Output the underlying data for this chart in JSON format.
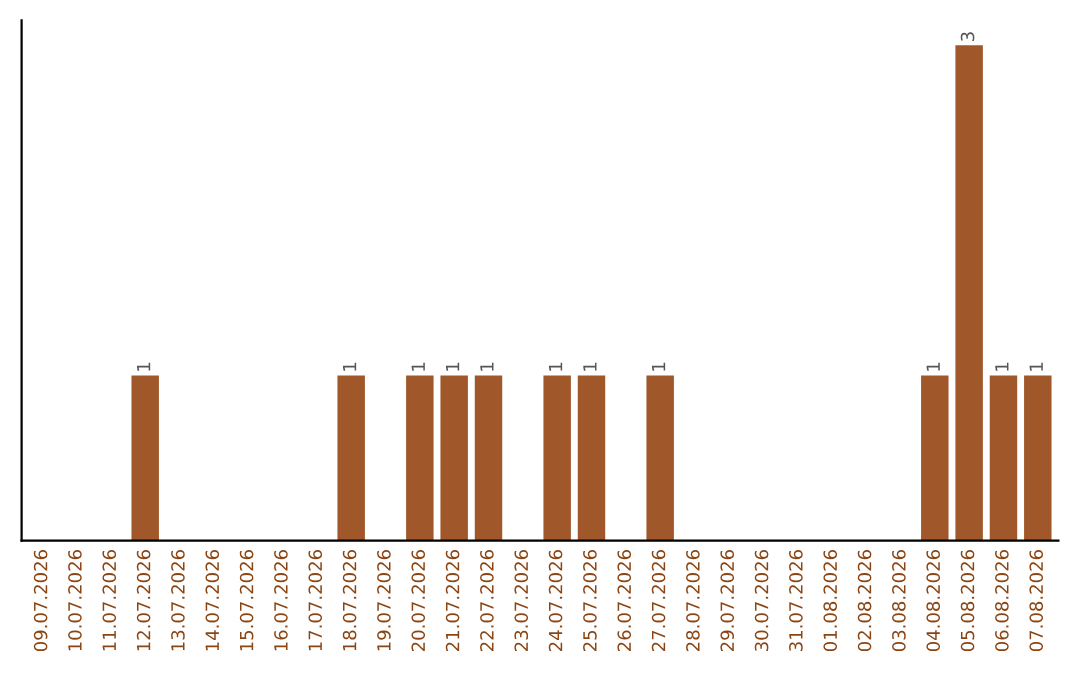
{
  "chart_data": {
    "type": "bar",
    "categories": [
      "09.07.2026",
      "10.07.2026",
      "11.07.2026",
      "12.07.2026",
      "13.07.2026",
      "14.07.2026",
      "15.07.2026",
      "16.07.2026",
      "17.07.2026",
      "18.07.2026",
      "19.07.2026",
      "20.07.2026",
      "21.07.2026",
      "22.07.2026",
      "23.07.2026",
      "24.07.2026",
      "25.07.2026",
      "26.07.2026",
      "27.07.2026",
      "28.07.2026",
      "29.07.2026",
      "30.07.2026",
      "31.07.2026",
      "01.08.2026",
      "02.08.2026",
      "03.08.2026",
      "04.08.2026",
      "05.08.2026",
      "06.08.2026",
      "07.08.2026"
    ],
    "values": [
      0,
      0,
      0,
      1,
      0,
      0,
      0,
      0,
      0,
      1,
      0,
      1,
      1,
      1,
      0,
      1,
      1,
      0,
      1,
      0,
      0,
      0,
      0,
      0,
      0,
      0,
      1,
      3,
      1,
      1
    ],
    "value_labels": [
      null,
      null,
      null,
      "1",
      null,
      null,
      null,
      null,
      null,
      "1",
      null,
      "1",
      "1",
      "1",
      null,
      "1",
      "1",
      null,
      "1",
      null,
      null,
      null,
      null,
      null,
      null,
      null,
      "1",
      "3",
      "1",
      "1"
    ],
    "color": "#a0572a",
    "grid": false,
    "legend": false
  }
}
